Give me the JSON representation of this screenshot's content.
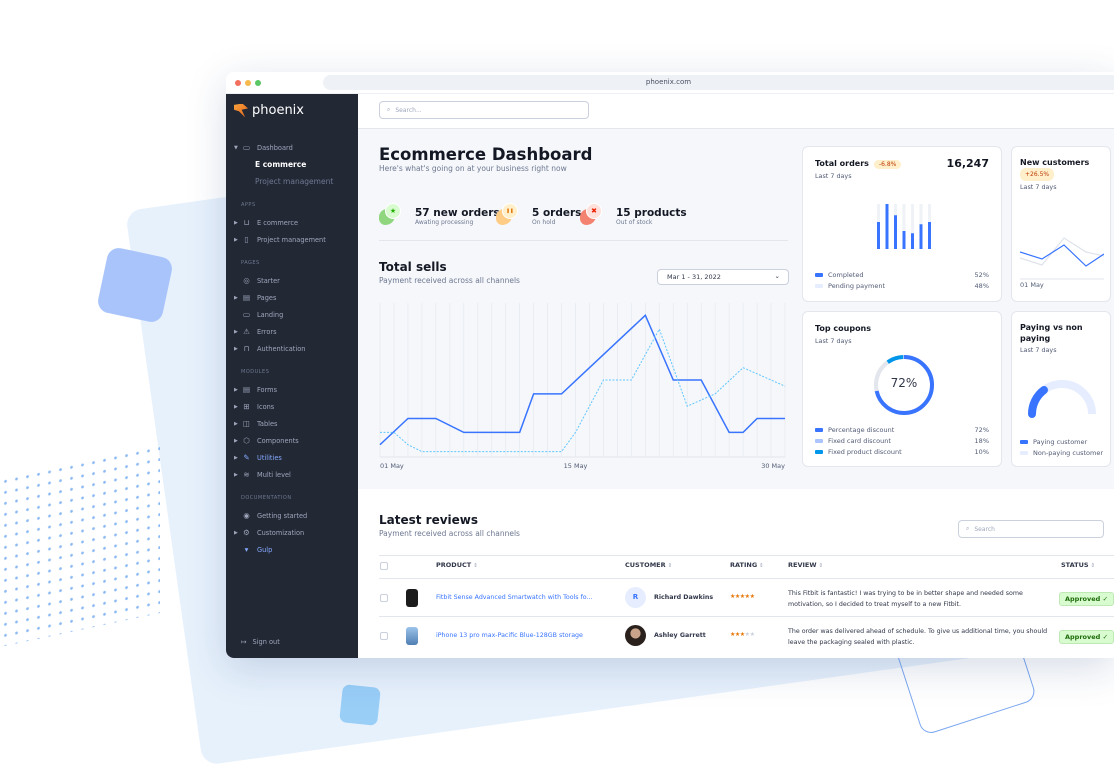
{
  "browser": {
    "url": "phoenix.com"
  },
  "brand": {
    "name": "phoenix",
    "accent": "#3874ff",
    "sidebar_bg": "#222834"
  },
  "topbar": {
    "search_placeholder": "Search..."
  },
  "sidebar": {
    "items": [
      {
        "type": "item",
        "label": "Dashboard",
        "icon": "dashboard-icon",
        "caret": "down"
      },
      {
        "type": "sub",
        "label": "E commerce",
        "active": true
      },
      {
        "type": "sub",
        "label": "Project management"
      },
      {
        "type": "hdr",
        "label": "APPS"
      },
      {
        "type": "item",
        "label": "E commerce",
        "icon": "cart-icon",
        "caret": "right"
      },
      {
        "type": "item",
        "label": "Project management",
        "icon": "clipboard-icon",
        "caret": "right"
      },
      {
        "type": "hdr",
        "label": "PAGES"
      },
      {
        "type": "item",
        "label": "Starter",
        "icon": "compass-icon"
      },
      {
        "type": "item",
        "label": "Pages",
        "icon": "layout-icon",
        "caret": "right"
      },
      {
        "type": "item",
        "label": "Landing",
        "icon": "monitor-icon"
      },
      {
        "type": "item",
        "label": "Errors",
        "icon": "warning-icon",
        "caret": "right"
      },
      {
        "type": "item",
        "label": "Authentication",
        "icon": "lock-icon",
        "caret": "right"
      },
      {
        "type": "hdr",
        "label": "MODULES"
      },
      {
        "type": "item",
        "label": "Forms",
        "icon": "file-icon",
        "caret": "right"
      },
      {
        "type": "item",
        "label": "Icons",
        "icon": "grid-icon",
        "caret": "right"
      },
      {
        "type": "item",
        "label": "Tables",
        "icon": "columns-icon",
        "caret": "right"
      },
      {
        "type": "item",
        "label": "Components",
        "icon": "package-icon",
        "caret": "right"
      },
      {
        "type": "item",
        "label": "Utilities",
        "icon": "tool-icon",
        "caret": "right",
        "blue": true
      },
      {
        "type": "item",
        "label": "Multi level",
        "icon": "layers-icon",
        "caret": "right"
      },
      {
        "type": "hdr",
        "label": "DOCUMENTATION"
      },
      {
        "type": "item",
        "label": "Getting started",
        "icon": "lifebuoy-icon"
      },
      {
        "type": "item",
        "label": "Customization",
        "icon": "settings-icon",
        "caret": "right"
      },
      {
        "type": "item",
        "label": "Gulp",
        "icon": "gulp-icon",
        "blue": true
      }
    ],
    "signout": "Sign out"
  },
  "header": {
    "title": "Ecommerce Dashboard",
    "subtitle": "Here's what's going on at your business right now"
  },
  "stats": [
    {
      "value": "57 new orders",
      "label": "Awating processing",
      "icon": "star-icon",
      "color": "#25b003"
    },
    {
      "value": "5 orders",
      "label": "On hold",
      "icon": "pause-icon",
      "color": "#e5780b"
    },
    {
      "value": "15 products",
      "label": "Out of stock",
      "icon": "x-icon",
      "color": "#ec1f00"
    }
  ],
  "total_sells": {
    "title": "Total sells",
    "subtitle": "Payment received across all channels",
    "date_range": "Mar 1 - 31, 2022"
  },
  "chart_data": [
    {
      "type": "line",
      "xlabels": [
        "01 May",
        "15 May",
        "30 May"
      ],
      "xlim": [
        1,
        30
      ],
      "ylim": [
        0,
        100
      ],
      "grid": "vertical",
      "series": [
        {
          "style": "solid",
          "color": "#3874ff",
          "points": [
            [
              1,
              8
            ],
            [
              3,
              25
            ],
            [
              5,
              25
            ],
            [
              7,
              16
            ],
            [
              11,
              16
            ],
            [
              12,
              41
            ],
            [
              14,
              41
            ],
            [
              20,
              92
            ],
            [
              22,
              50
            ],
            [
              24,
              50
            ],
            [
              26,
              16
            ],
            [
              27,
              16
            ],
            [
              28,
              25
            ],
            [
              30,
              25
            ]
          ]
        },
        {
          "style": "dashed",
          "color": "#60c6ff",
          "points": [
            [
              1,
              16
            ],
            [
              2,
              16
            ],
            [
              3,
              8
            ],
            [
              4,
              3.5
            ],
            [
              14,
              3.5
            ],
            [
              15,
              16
            ],
            [
              17,
              50
            ],
            [
              19,
              50
            ],
            [
              21,
              83
            ],
            [
              23,
              33
            ],
            [
              25,
              41
            ],
            [
              27,
              58
            ],
            [
              30,
              46
            ]
          ]
        }
      ]
    },
    {
      "type": "bar",
      "title": "Total orders",
      "values": [
        0.6,
        1.0,
        0.75,
        0.4,
        0.35,
        0.55,
        0.6
      ]
    },
    {
      "type": "pie",
      "title": "Top coupons",
      "categories": [
        "Percentage discount",
        "Fixed card discount",
        "Fixed product discount"
      ],
      "values": [
        72,
        18,
        10
      ]
    }
  ],
  "cards": {
    "total_orders": {
      "title": "Total orders",
      "badge": "-6.8%",
      "value": "16,247",
      "period": "Last 7 days",
      "legend": [
        {
          "label": "Completed",
          "value": "52%",
          "color": "#3874ff"
        },
        {
          "label": "Pending payment",
          "value": "48%",
          "color": "#e5edff"
        }
      ]
    },
    "new_customers": {
      "title": "New customers",
      "badge": "+26.5%",
      "period": "Last 7 days",
      "xlabel": "01 May"
    },
    "top_coupons": {
      "title": "Top coupons",
      "period": "Last 7 days",
      "center": "72%",
      "legend": [
        {
          "label": "Percentage discount",
          "value": "72%",
          "color": "#3874ff"
        },
        {
          "label": "Fixed card discount",
          "value": "18%",
          "color": "#adc5fe"
        },
        {
          "label": "Fixed product discount",
          "value": "10%",
          "color": "#0097eb"
        }
      ]
    },
    "paying": {
      "title": "Paying vs non paying",
      "period": "Last 7 days",
      "paying_fraction": 0.3,
      "legend": [
        {
          "label": "Paying customer",
          "color": "#3874ff"
        },
        {
          "label": "Non-paying customer",
          "color": "#e5edff"
        }
      ]
    }
  },
  "reviews": {
    "title": "Latest reviews",
    "subtitle": "Payment received across all channels",
    "search_placeholder": "Search",
    "columns": [
      "PRODUCT",
      "CUSTOMER",
      "RATING",
      "REVIEW",
      "STATUS"
    ],
    "rows": [
      {
        "product": "Fitbit Sense Advanced Smartwatch with Tools fo...",
        "customer": "Richard Dawkins",
        "avatar": "R",
        "rating": 5,
        "review": "This Fitbit is fantastic! I was trying to be in better shape and needed some motivation, so I decided to treat myself to a new Fitbit.",
        "status": "Approved"
      },
      {
        "product": "iPhone 13 pro max-Pacific Blue-128GB storage",
        "customer": "Ashley Garrett",
        "avatar": "",
        "rating": 3,
        "review": "The order was delivered ahead of schedule. To give us additional time, you should leave the packaging sealed with plastic.",
        "status": "Approved"
      }
    ]
  }
}
